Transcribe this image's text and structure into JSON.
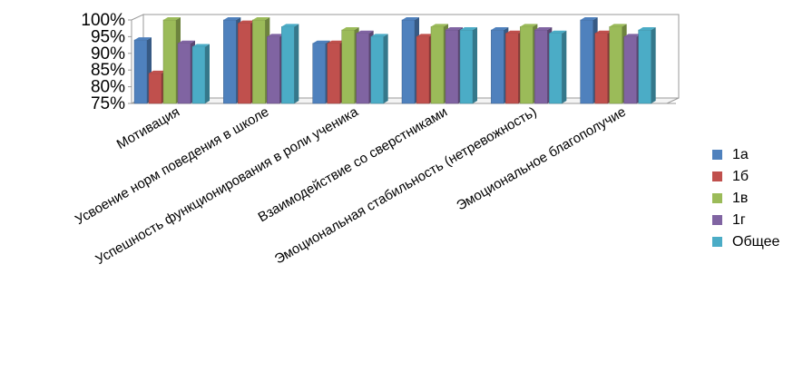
{
  "chart_data": {
    "type": "bar",
    "categories": [
      "Мотивация",
      "Усвоение норм поведения в школе",
      "Успешность функционирования в роли ученика",
      "Взаимодействие со сверстниками",
      "Эмоциональная стабильность (нетревожность)",
      "Эмоциональное благополучие"
    ],
    "series": [
      {
        "name": "1а",
        "color": "#4F81BD",
        "values": [
          94,
          100,
          93,
          100,
          97,
          100
        ]
      },
      {
        "name": "1б",
        "color": "#C0504D",
        "values": [
          84,
          99,
          93,
          95,
          96,
          96
        ]
      },
      {
        "name": "1в",
        "color": "#9BBB59",
        "values": [
          100,
          100,
          97,
          98,
          98,
          98
        ]
      },
      {
        "name": "1г",
        "color": "#8064A2",
        "values": [
          93,
          95,
          96,
          97,
          97,
          95
        ]
      },
      {
        "name": "Общее",
        "color": "#4BACC6",
        "values": [
          92,
          98,
          95,
          97,
          96,
          97
        ]
      }
    ],
    "y_ticks": [
      "75%",
      "80%",
      "85%",
      "90%",
      "95%",
      "100%"
    ],
    "ylim": [
      75,
      100
    ],
    "legend_position": "right",
    "grid": false,
    "three_d": true
  }
}
